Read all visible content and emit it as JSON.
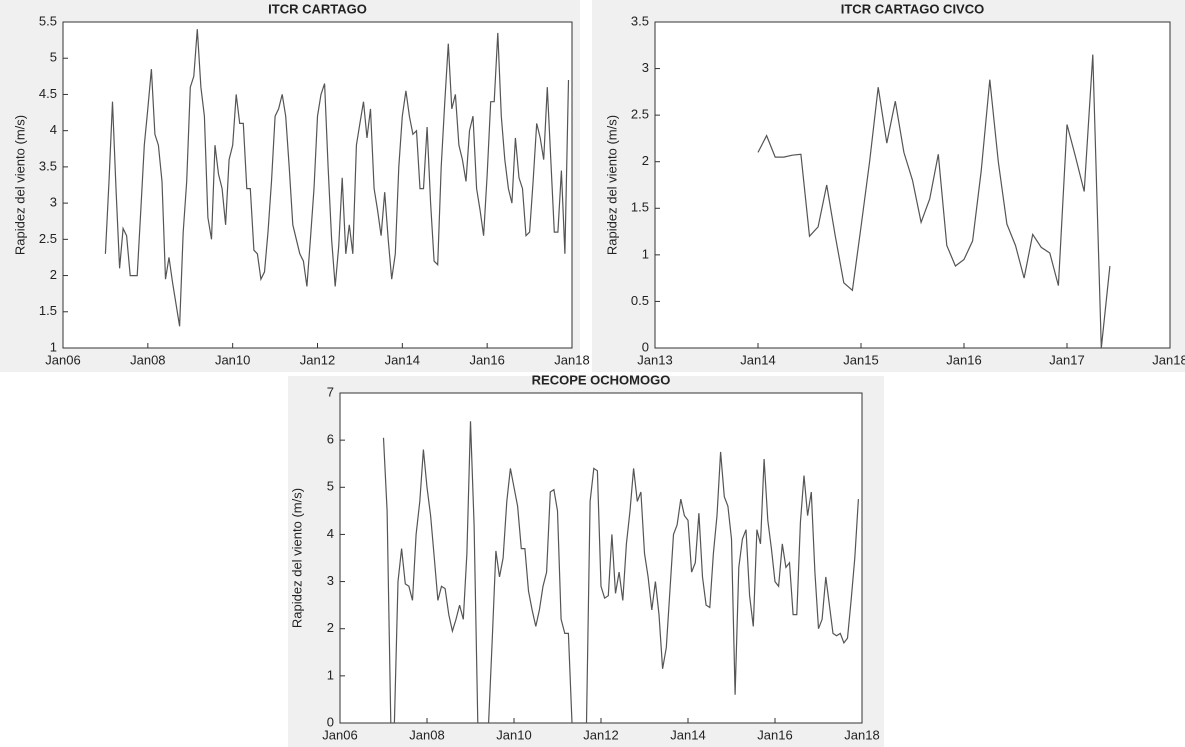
{
  "chart_data": [
    {
      "type": "line",
      "title": "ITCR CARTAGO",
      "ylabel": "Rapidez del viento (m/s)",
      "color": "#555555",
      "x": [
        "2007-01",
        "2007-02",
        "2007-03",
        "2007-04",
        "2007-05",
        "2007-06",
        "2007-07",
        "2007-08",
        "2007-09",
        "2007-10",
        "2007-11",
        "2007-12",
        "2008-01",
        "2008-02",
        "2008-03",
        "2008-04",
        "2008-05",
        "2008-06",
        "2008-07",
        "2008-08",
        "2008-09",
        "2008-10",
        "2008-11",
        "2008-12",
        "2009-01",
        "2009-02",
        "2009-03",
        "2009-04",
        "2009-05",
        "2009-06",
        "2009-07",
        "2009-08",
        "2009-09",
        "2009-10",
        "2009-11",
        "2009-12",
        "2010-01",
        "2010-02",
        "2010-03",
        "2010-04",
        "2010-05",
        "2010-06",
        "2010-07",
        "2010-08",
        "2010-09",
        "2010-10",
        "2010-11",
        "2010-12",
        "2011-01",
        "2011-02",
        "2011-03",
        "2011-04",
        "2011-05",
        "2011-06",
        "2011-07",
        "2011-08",
        "2011-09",
        "2011-10",
        "2011-11",
        "2011-12",
        "2012-01",
        "2012-02",
        "2012-03",
        "2012-04",
        "2012-05",
        "2012-06",
        "2012-07",
        "2012-08",
        "2012-09",
        "2012-10",
        "2012-11",
        "2012-12",
        "2013-01",
        "2013-02",
        "2013-03",
        "2013-04",
        "2013-05",
        "2013-06",
        "2013-07",
        "2013-08",
        "2013-09",
        "2013-10",
        "2013-11",
        "2013-12",
        "2014-01",
        "2014-02",
        "2014-03",
        "2014-04",
        "2014-05",
        "2014-06",
        "2014-07",
        "2014-08",
        "2014-09",
        "2014-10",
        "2014-11",
        "2014-12",
        "2015-01",
        "2015-02",
        "2015-03",
        "2015-04",
        "2015-05",
        "2015-06",
        "2015-07",
        "2015-08",
        "2015-09",
        "2015-10",
        "2015-11",
        "2015-12",
        "2016-01",
        "2016-02",
        "2016-03",
        "2016-04",
        "2016-05",
        "2016-06",
        "2016-07",
        "2016-08",
        "2016-09",
        "2016-10",
        "2016-11",
        "2016-12",
        "2017-01",
        "2017-02",
        "2017-03",
        "2017-04",
        "2017-05",
        "2017-06",
        "2017-07",
        "2017-08",
        "2017-09",
        "2017-10",
        "2017-11",
        "2017-12"
      ],
      "values": [
        2.3,
        3.3,
        4.4,
        3.2,
        2.1,
        2.65,
        2.55,
        2.0,
        2.0,
        2.0,
        2.9,
        3.8,
        4.3,
        4.85,
        3.95,
        3.8,
        3.3,
        1.95,
        2.25,
        1.9,
        1.6,
        1.3,
        2.6,
        3.3,
        4.6,
        4.75,
        5.4,
        4.6,
        4.2,
        2.8,
        2.5,
        3.8,
        3.4,
        3.2,
        2.7,
        3.6,
        3.8,
        4.5,
        4.1,
        4.1,
        3.2,
        3.2,
        2.35,
        2.3,
        1.95,
        2.05,
        2.6,
        3.3,
        4.2,
        4.3,
        4.5,
        4.2,
        3.5,
        2.7,
        2.5,
        2.3,
        2.2,
        1.85,
        2.5,
        3.2,
        4.2,
        4.5,
        4.65,
        3.5,
        2.5,
        1.85,
        2.4,
        3.35,
        2.3,
        2.7,
        2.3,
        3.8,
        4.1,
        4.4,
        3.9,
        4.3,
        3.2,
        2.9,
        2.55,
        3.15,
        2.5,
        1.95,
        2.3,
        3.5,
        4.2,
        4.55,
        4.2,
        3.95,
        4.0,
        3.2,
        3.2,
        4.05,
        3.0,
        2.2,
        2.15,
        3.5,
        4.4,
        5.2,
        4.3,
        4.5,
        3.8,
        3.6,
        3.3,
        4.0,
        4.2,
        3.2,
        2.9,
        2.55,
        3.4,
        4.4,
        4.4,
        5.35,
        4.2,
        3.6,
        3.2,
        3.0,
        3.9,
        3.35,
        3.2,
        2.55,
        2.6,
        3.3,
        4.1,
        3.9,
        3.6,
        4.6,
        3.6,
        2.6,
        2.6,
        3.45,
        2.3,
        4.7
      ],
      "xlim": [
        "2006-01",
        "2018-01"
      ],
      "xticks": [
        {
          "value": "2006-01",
          "label": "Jan06"
        },
        {
          "value": "2008-01",
          "label": "Jan08"
        },
        {
          "value": "2010-01",
          "label": "Jan10"
        },
        {
          "value": "2012-01",
          "label": "Jan12"
        },
        {
          "value": "2014-01",
          "label": "Jan14"
        },
        {
          "value": "2016-01",
          "label": "Jan16"
        },
        {
          "value": "2018-01",
          "label": "Jan18"
        }
      ],
      "ylim": [
        1,
        5.5
      ],
      "yticks": [
        1,
        1.5,
        2,
        2.5,
        3,
        3.5,
        4,
        4.5,
        5,
        5.5
      ]
    },
    {
      "type": "line",
      "title": "ITCR CARTAGO CIVCO",
      "ylabel": "Rapidez del viento (m/s)",
      "color": "#555555",
      "x": [
        "2014-01",
        "2014-02",
        "2014-03",
        "2014-04",
        "2014-05",
        "2014-06",
        "2014-07",
        "2014-08",
        "2014-09",
        "2014-10",
        "2014-11",
        "2014-12",
        "2015-01",
        "2015-02",
        "2015-03",
        "2015-04",
        "2015-05",
        "2015-06",
        "2015-07",
        "2015-08",
        "2015-09",
        "2015-10",
        "2015-11",
        "2015-12",
        "2016-01",
        "2016-02",
        "2016-03",
        "2016-04",
        "2016-05",
        "2016-06",
        "2016-07",
        "2016-08",
        "2016-09",
        "2016-10",
        "2016-11",
        "2016-12",
        "2017-01",
        "2017-02",
        "2017-03",
        "2017-04",
        "2017-05",
        "2017-06"
      ],
      "values": [
        2.1,
        2.28,
        2.05,
        2.05,
        2.07,
        2.08,
        1.2,
        1.3,
        1.75,
        1.2,
        0.7,
        0.62,
        1.3,
        2.0,
        2.8,
        2.2,
        2.65,
        2.1,
        1.8,
        1.35,
        1.6,
        2.08,
        1.1,
        0.88,
        0.95,
        1.15,
        1.9,
        2.88,
        2.0,
        1.33,
        1.1,
        0.75,
        1.22,
        1.08,
        1.02,
        0.67,
        2.4,
        2.05,
        1.68,
        3.15,
        0,
        0.88
      ],
      "xlim": [
        "2013-01",
        "2018-01"
      ],
      "xticks": [
        {
          "value": "2013-01",
          "label": "Jan13"
        },
        {
          "value": "2014-01",
          "label": "Jan14"
        },
        {
          "value": "2015-01",
          "label": "Jan15"
        },
        {
          "value": "2016-01",
          "label": "Jan16"
        },
        {
          "value": "2017-01",
          "label": "Jan17"
        },
        {
          "value": "2018-01",
          "label": "Jan18"
        }
      ],
      "ylim": [
        0,
        3.5
      ],
      "yticks": [
        0,
        0.5,
        1,
        1.5,
        2,
        2.5,
        3,
        3.5
      ]
    },
    {
      "type": "line",
      "title": "RECOPE OCHOMOGO",
      "ylabel": "Rapidez del viento (m/s)",
      "color": "#555555",
      "x": [
        "2007-01",
        "2007-02",
        "2007-03",
        "2007-04",
        "2007-05",
        "2007-06",
        "2007-07",
        "2007-08",
        "2007-09",
        "2007-10",
        "2007-11",
        "2007-12",
        "2008-01",
        "2008-02",
        "2008-03",
        "2008-04",
        "2008-05",
        "2008-06",
        "2008-07",
        "2008-08",
        "2008-09",
        "2008-10",
        "2008-11",
        "2008-12",
        "2009-01",
        "2009-02",
        "2009-03",
        "2009-04",
        "2009-05",
        "2009-06",
        "2009-07",
        "2009-08",
        "2009-09",
        "2009-10",
        "2009-11",
        "2009-12",
        "2010-01",
        "2010-02",
        "2010-03",
        "2010-04",
        "2010-05",
        "2010-06",
        "2010-07",
        "2010-08",
        "2010-09",
        "2010-10",
        "2010-11",
        "2010-12",
        "2011-01",
        "2011-02",
        "2011-03",
        "2011-04",
        "2011-05",
        "2011-06",
        "2011-07",
        "2011-08",
        "2011-09",
        "2011-10",
        "2011-11",
        "2011-12",
        "2012-01",
        "2012-02",
        "2012-03",
        "2012-04",
        "2012-05",
        "2012-06",
        "2012-07",
        "2012-08",
        "2012-09",
        "2012-10",
        "2012-11",
        "2012-12",
        "2013-01",
        "2013-02",
        "2013-03",
        "2013-04",
        "2013-05",
        "2013-06",
        "2013-07",
        "2013-08",
        "2013-09",
        "2013-10",
        "2013-11",
        "2013-12",
        "2014-01",
        "2014-02",
        "2014-03",
        "2014-04",
        "2014-05",
        "2014-06",
        "2014-07",
        "2014-08",
        "2014-09",
        "2014-10",
        "2014-11",
        "2014-12",
        "2015-01",
        "2015-02",
        "2015-03",
        "2015-04",
        "2015-05",
        "2015-06",
        "2015-07",
        "2015-08",
        "2015-09",
        "2015-10",
        "2015-11",
        "2015-12",
        "2016-01",
        "2016-02",
        "2016-03",
        "2016-04",
        "2016-05",
        "2016-06",
        "2016-07",
        "2016-08",
        "2016-09",
        "2016-10",
        "2016-11",
        "2016-12",
        "2017-01",
        "2017-02",
        "2017-03",
        "2017-04",
        "2017-05",
        "2017-06",
        "2017-07",
        "2017-08",
        "2017-09",
        "2017-10",
        "2017-11",
        "2017-12"
      ],
      "values": [
        6.05,
        4.5,
        0,
        0,
        3.0,
        3.7,
        2.95,
        2.9,
        2.6,
        4.0,
        4.7,
        5.8,
        5.0,
        4.4,
        3.5,
        2.6,
        2.9,
        2.85,
        2.3,
        1.95,
        2.2,
        2.5,
        2.2,
        3.6,
        6.4,
        4.2,
        0,
        0,
        0,
        0,
        1.8,
        3.65,
        3.1,
        3.5,
        4.7,
        5.4,
        5.0,
        4.6,
        3.7,
        3.7,
        2.8,
        2.4,
        2.05,
        2.4,
        2.9,
        3.2,
        4.9,
        4.95,
        4.5,
        2.2,
        1.9,
        1.9,
        0,
        0,
        0,
        0,
        0,
        4.7,
        5.4,
        5.35,
        2.9,
        2.65,
        2.7,
        4.0,
        2.75,
        3.2,
        2.6,
        3.8,
        4.5,
        5.4,
        4.7,
        4.9,
        3.6,
        3.1,
        2.4,
        3.0,
        2.3,
        1.15,
        1.6,
        2.8,
        4.0,
        4.2,
        4.75,
        4.4,
        4.3,
        3.2,
        3.4,
        4.45,
        3.1,
        2.5,
        2.45,
        3.6,
        4.4,
        5.75,
        4.8,
        4.6,
        3.9,
        0.6,
        3.3,
        3.9,
        4.1,
        2.7,
        2.05,
        4.1,
        3.8,
        5.6,
        4.3,
        3.7,
        3.0,
        2.9,
        3.8,
        3.3,
        3.4,
        2.3,
        2.3,
        4.25,
        5.25,
        4.4,
        4.9,
        3.2,
        2.0,
        2.2,
        3.1,
        2.5,
        1.9,
        1.85,
        1.9,
        1.7,
        1.8,
        2.6,
        3.5,
        4.75
      ],
      "xlim": [
        "2006-01",
        "2018-01"
      ],
      "xticks": [
        {
          "value": "2006-01",
          "label": "Jan06"
        },
        {
          "value": "2008-01",
          "label": "Jan08"
        },
        {
          "value": "2010-01",
          "label": "Jan10"
        },
        {
          "value": "2012-01",
          "label": "Jan12"
        },
        {
          "value": "2014-01",
          "label": "Jan14"
        },
        {
          "value": "2016-01",
          "label": "Jan16"
        },
        {
          "value": "2018-01",
          "label": "Jan18"
        }
      ],
      "ylim": [
        0,
        7
      ],
      "yticks": [
        0,
        1,
        2,
        3,
        4,
        5,
        6,
        7
      ]
    }
  ]
}
